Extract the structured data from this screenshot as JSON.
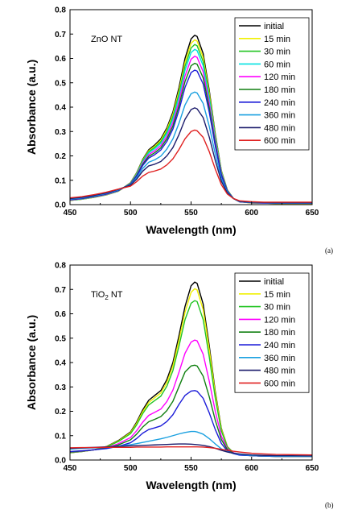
{
  "chart_data": [
    {
      "type": "line",
      "annotation": "ZnO NT",
      "xlabel": "Wavelength (nm)",
      "ylabel": "Absorbance (a.u.)",
      "xlim": [
        450,
        650
      ],
      "ylim": [
        0.0,
        0.8
      ],
      "xticks": [
        450,
        500,
        550,
        600,
        650
      ],
      "yticks": [
        0.0,
        0.1,
        0.2,
        0.3,
        0.4,
        0.5,
        0.6,
        0.7,
        0.8
      ],
      "xtick_labels": [
        "450",
        "500",
        "550",
        "600",
        "650"
      ],
      "ytick_labels": [
        "0.0",
        "0.1",
        "0.2",
        "0.3",
        "0.4",
        "0.5",
        "0.6",
        "0.7",
        "0.8"
      ],
      "legend_position": "top-right",
      "panel_tag": "(a)",
      "x": [
        450,
        460,
        470,
        480,
        490,
        500,
        505,
        510,
        515,
        520,
        525,
        530,
        535,
        540,
        545,
        550,
        553,
        555,
        560,
        565,
        570,
        575,
        580,
        585,
        590,
        600,
        610,
        620,
        650
      ],
      "series": [
        {
          "name": "initial",
          "color": "#000000",
          "values": [
            0.017,
            0.022,
            0.03,
            0.04,
            0.055,
            0.09,
            0.13,
            0.185,
            0.225,
            0.245,
            0.27,
            0.315,
            0.38,
            0.48,
            0.6,
            0.68,
            0.695,
            0.69,
            0.62,
            0.47,
            0.29,
            0.14,
            0.06,
            0.025,
            0.012,
            0.007,
            0.006,
            0.005,
            0.005
          ]
        },
        {
          "name": "15 min",
          "color": "#f0f000",
          "values": [
            0.017,
            0.022,
            0.03,
            0.04,
            0.055,
            0.089,
            0.128,
            0.182,
            0.221,
            0.24,
            0.264,
            0.308,
            0.371,
            0.467,
            0.584,
            0.662,
            0.676,
            0.671,
            0.604,
            0.459,
            0.284,
            0.138,
            0.059,
            0.025,
            0.012,
            0.007,
            0.006,
            0.005,
            0.005
          ]
        },
        {
          "name": "30 min",
          "color": "#22c422",
          "values": [
            0.018,
            0.023,
            0.031,
            0.041,
            0.056,
            0.088,
            0.126,
            0.179,
            0.217,
            0.235,
            0.258,
            0.3,
            0.361,
            0.454,
            0.568,
            0.643,
            0.657,
            0.652,
            0.587,
            0.446,
            0.277,
            0.135,
            0.058,
            0.025,
            0.012,
            0.008,
            0.006,
            0.006,
            0.006
          ]
        },
        {
          "name": "60 min",
          "color": "#00e0e0",
          "values": [
            0.018,
            0.023,
            0.031,
            0.041,
            0.056,
            0.087,
            0.124,
            0.175,
            0.212,
            0.229,
            0.251,
            0.292,
            0.351,
            0.441,
            0.551,
            0.624,
            0.637,
            0.632,
            0.57,
            0.434,
            0.27,
            0.132,
            0.057,
            0.025,
            0.012,
            0.008,
            0.006,
            0.006,
            0.006
          ]
        },
        {
          "name": "120 min",
          "color": "#ff00ff",
          "values": [
            0.019,
            0.024,
            0.032,
            0.042,
            0.057,
            0.086,
            0.121,
            0.17,
            0.205,
            0.221,
            0.242,
            0.281,
            0.337,
            0.423,
            0.528,
            0.597,
            0.609,
            0.604,
            0.545,
            0.416,
            0.26,
            0.128,
            0.056,
            0.025,
            0.012,
            0.008,
            0.006,
            0.006,
            0.006
          ]
        },
        {
          "name": "180 min",
          "color": "#107f10",
          "values": [
            0.02,
            0.025,
            0.033,
            0.043,
            0.058,
            0.085,
            0.119,
            0.165,
            0.198,
            0.213,
            0.233,
            0.27,
            0.323,
            0.405,
            0.505,
            0.57,
            0.58,
            0.576,
            0.52,
            0.398,
            0.25,
            0.124,
            0.055,
            0.025,
            0.012,
            0.008,
            0.007,
            0.006,
            0.006
          ]
        },
        {
          "name": "240 min",
          "color": "#1b1bd8",
          "values": [
            0.021,
            0.026,
            0.034,
            0.044,
            0.059,
            0.084,
            0.116,
            0.16,
            0.191,
            0.205,
            0.224,
            0.259,
            0.31,
            0.387,
            0.481,
            0.542,
            0.552,
            0.548,
            0.495,
            0.38,
            0.24,
            0.12,
            0.054,
            0.025,
            0.012,
            0.008,
            0.007,
            0.006,
            0.006
          ]
        },
        {
          "name": "360 min",
          "color": "#1aa0e0",
          "values": [
            0.023,
            0.028,
            0.036,
            0.046,
            0.061,
            0.082,
            0.11,
            0.148,
            0.174,
            0.184,
            0.199,
            0.228,
            0.27,
            0.334,
            0.409,
            0.455,
            0.462,
            0.458,
            0.415,
            0.322,
            0.207,
            0.107,
            0.05,
            0.025,
            0.013,
            0.009,
            0.008,
            0.007,
            0.007
          ]
        },
        {
          "name": "480 min",
          "color": "#1c1c6c",
          "values": [
            0.025,
            0.03,
            0.038,
            0.048,
            0.063,
            0.08,
            0.104,
            0.137,
            0.159,
            0.166,
            0.177,
            0.2,
            0.234,
            0.287,
            0.35,
            0.39,
            0.397,
            0.393,
            0.357,
            0.278,
            0.181,
            0.096,
            0.047,
            0.025,
            0.014,
            0.01,
            0.009,
            0.008,
            0.008
          ]
        },
        {
          "name": "600 min",
          "color": "#e02020",
          "values": [
            0.028,
            0.033,
            0.041,
            0.051,
            0.064,
            0.076,
            0.094,
            0.117,
            0.132,
            0.138,
            0.146,
            0.163,
            0.188,
            0.226,
            0.27,
            0.3,
            0.306,
            0.303,
            0.276,
            0.218,
            0.146,
            0.082,
            0.043,
            0.025,
            0.016,
            0.012,
            0.01,
            0.01,
            0.01
          ]
        }
      ]
    },
    {
      "type": "line",
      "annotation": "TiO",
      "annotation_sub": "2",
      "annotation_tail": " NT",
      "xlabel": "Wavelength (nm)",
      "ylabel": "Absorbance (a.u.)",
      "xlim": [
        450,
        650
      ],
      "ylim": [
        0.0,
        0.8
      ],
      "xticks": [
        450,
        500,
        550,
        600,
        650
      ],
      "yticks": [
        0.0,
        0.1,
        0.2,
        0.3,
        0.4,
        0.5,
        0.6,
        0.7,
        0.8
      ],
      "xtick_labels": [
        "450",
        "500",
        "550",
        "600",
        "650"
      ],
      "ytick_labels": [
        "0.0",
        "0.1",
        "0.2",
        "0.3",
        "0.4",
        "0.5",
        "0.6",
        "0.7",
        "0.8"
      ],
      "legend_position": "top-right",
      "panel_tag": "(b)",
      "x": [
        450,
        460,
        470,
        480,
        490,
        500,
        505,
        510,
        515,
        520,
        525,
        530,
        535,
        540,
        545,
        550,
        553,
        555,
        560,
        565,
        570,
        575,
        580,
        585,
        590,
        600,
        610,
        620,
        650
      ],
      "series": [
        {
          "name": "initial",
          "color": "#000000",
          "values": [
            0.03,
            0.035,
            0.042,
            0.055,
            0.08,
            0.115,
            0.155,
            0.205,
            0.245,
            0.265,
            0.285,
            0.33,
            0.4,
            0.51,
            0.63,
            0.715,
            0.73,
            0.725,
            0.64,
            0.47,
            0.28,
            0.13,
            0.055,
            0.03,
            0.022,
            0.018,
            0.016,
            0.015,
            0.015
          ]
        },
        {
          "name": "15 min",
          "color": "#f0f000",
          "values": [
            0.03,
            0.035,
            0.042,
            0.054,
            0.078,
            0.112,
            0.15,
            0.198,
            0.236,
            0.256,
            0.275,
            0.318,
            0.386,
            0.491,
            0.606,
            0.688,
            0.703,
            0.698,
            0.617,
            0.454,
            0.271,
            0.127,
            0.054,
            0.03,
            0.022,
            0.018,
            0.016,
            0.015,
            0.015
          ]
        },
        {
          "name": "30 min",
          "color": "#22c422",
          "values": [
            0.03,
            0.035,
            0.042,
            0.053,
            0.076,
            0.108,
            0.144,
            0.19,
            0.226,
            0.244,
            0.262,
            0.303,
            0.367,
            0.467,
            0.576,
            0.643,
            0.654,
            0.65,
            0.576,
            0.424,
            0.254,
            0.12,
            0.052,
            0.03,
            0.022,
            0.018,
            0.016,
            0.015,
            0.015
          ]
        },
        {
          "name": "120 min",
          "color": "#ff00ff",
          "values": [
            0.032,
            0.036,
            0.042,
            0.05,
            0.067,
            0.092,
            0.12,
            0.155,
            0.183,
            0.196,
            0.209,
            0.24,
            0.287,
            0.36,
            0.438,
            0.484,
            0.492,
            0.489,
            0.434,
            0.324,
            0.2,
            0.098,
            0.046,
            0.03,
            0.022,
            0.018,
            0.016,
            0.015,
            0.015
          ]
        },
        {
          "name": "180 min",
          "color": "#107f10",
          "values": [
            0.033,
            0.037,
            0.042,
            0.049,
            0.062,
            0.083,
            0.106,
            0.135,
            0.157,
            0.167,
            0.178,
            0.203,
            0.241,
            0.301,
            0.361,
            0.386,
            0.389,
            0.386,
            0.344,
            0.26,
            0.163,
            0.084,
            0.042,
            0.028,
            0.021,
            0.018,
            0.016,
            0.015,
            0.015
          ]
        },
        {
          "name": "240 min",
          "color": "#1b1bd8",
          "values": [
            0.035,
            0.038,
            0.042,
            0.047,
            0.056,
            0.071,
            0.088,
            0.11,
            0.125,
            0.132,
            0.14,
            0.158,
            0.186,
            0.228,
            0.265,
            0.283,
            0.285,
            0.282,
            0.253,
            0.194,
            0.125,
            0.068,
            0.037,
            0.026,
            0.02,
            0.018,
            0.016,
            0.015,
            0.015
          ]
        },
        {
          "name": "360 min",
          "color": "#1aa0e0",
          "values": [
            0.045,
            0.048,
            0.05,
            0.053,
            0.057,
            0.063,
            0.067,
            0.072,
            0.077,
            0.082,
            0.087,
            0.093,
            0.1,
            0.107,
            0.113,
            0.117,
            0.117,
            0.115,
            0.106,
            0.088,
            0.066,
            0.046,
            0.034,
            0.027,
            0.023,
            0.019,
            0.017,
            0.016,
            0.015
          ]
        },
        {
          "name": "480 min",
          "color": "#1c1c6c",
          "values": [
            0.048,
            0.05,
            0.052,
            0.054,
            0.056,
            0.058,
            0.059,
            0.06,
            0.061,
            0.062,
            0.063,
            0.064,
            0.065,
            0.066,
            0.066,
            0.065,
            0.064,
            0.063,
            0.06,
            0.055,
            0.048,
            0.04,
            0.033,
            0.028,
            0.025,
            0.021,
            0.019,
            0.018,
            0.017
          ]
        },
        {
          "name": "600 min",
          "color": "#e02020",
          "values": [
            0.05,
            0.051,
            0.051,
            0.052,
            0.052,
            0.052,
            0.053,
            0.053,
            0.053,
            0.053,
            0.053,
            0.054,
            0.054,
            0.054,
            0.054,
            0.054,
            0.054,
            0.054,
            0.053,
            0.051,
            0.048,
            0.044,
            0.04,
            0.036,
            0.033,
            0.028,
            0.025,
            0.023,
            0.021
          ]
        }
      ]
    }
  ]
}
